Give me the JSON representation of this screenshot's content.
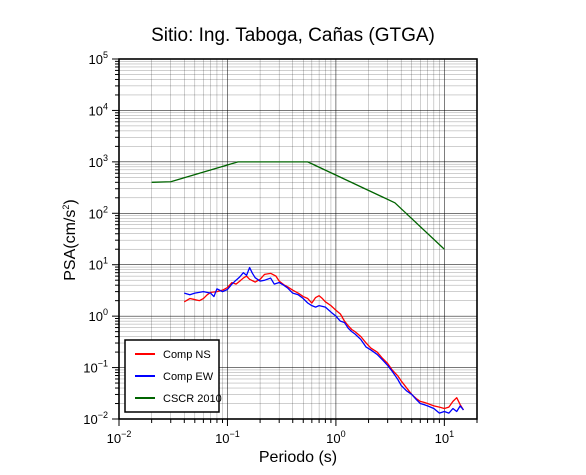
{
  "chart_data": {
    "type": "line",
    "title": "Sitio: Ing. Taboga, Cañas (GTGA)",
    "xlabel": "Periodo (s)",
    "ylabel_main": "PSA(cm/s",
    "ylabel_sup": "2",
    "ylabel_tail": ")",
    "xscale": "log",
    "yscale": "log",
    "xlim": [
      0.01,
      20
    ],
    "ylim": [
      0.01,
      100000
    ],
    "grid": true,
    "legend_position": "bottom-left",
    "x_ticks": [
      {
        "base": "10",
        "exp": "−2"
      },
      {
        "base": "10",
        "exp": "−1"
      },
      {
        "base": "10",
        "exp": "0"
      },
      {
        "base": "10",
        "exp": "1"
      }
    ],
    "y_ticks": [
      {
        "base": "10",
        "exp": "−2"
      },
      {
        "base": "10",
        "exp": "−1"
      },
      {
        "base": "10",
        "exp": "0"
      },
      {
        "base": "10",
        "exp": "1"
      },
      {
        "base": "10",
        "exp": "2"
      },
      {
        "base": "10",
        "exp": "3"
      },
      {
        "base": "10",
        "exp": "4"
      },
      {
        "base": "10",
        "exp": "5"
      }
    ],
    "series": [
      {
        "name": "Comp NS",
        "color": "#ff0000",
        "points": [
          [
            0.04,
            1.9
          ],
          [
            0.045,
            2.2
          ],
          [
            0.05,
            2.1
          ],
          [
            0.055,
            2.0
          ],
          [
            0.06,
            2.2
          ],
          [
            0.065,
            2.6
          ],
          [
            0.07,
            2.9
          ],
          [
            0.08,
            3.0
          ],
          [
            0.09,
            3.2
          ],
          [
            0.1,
            3.6
          ],
          [
            0.11,
            4.5
          ],
          [
            0.12,
            4.2
          ],
          [
            0.13,
            4.8
          ],
          [
            0.14,
            5.5
          ],
          [
            0.15,
            6.0
          ],
          [
            0.16,
            5.2
          ],
          [
            0.18,
            4.6
          ],
          [
            0.2,
            5.2
          ],
          [
            0.22,
            6.5
          ],
          [
            0.25,
            6.8
          ],
          [
            0.28,
            6.0
          ],
          [
            0.3,
            4.8
          ],
          [
            0.33,
            4.1
          ],
          [
            0.36,
            3.7
          ],
          [
            0.4,
            3.2
          ],
          [
            0.45,
            2.8
          ],
          [
            0.5,
            2.4
          ],
          [
            0.55,
            2.2
          ],
          [
            0.6,
            1.8
          ],
          [
            0.65,
            2.3
          ],
          [
            0.7,
            2.5
          ],
          [
            0.75,
            2.2
          ],
          [
            0.8,
            1.9
          ],
          [
            0.9,
            1.6
          ],
          [
            1.0,
            1.3
          ],
          [
            1.1,
            1.1
          ],
          [
            1.2,
            0.8
          ],
          [
            1.3,
            0.65
          ],
          [
            1.4,
            0.55
          ],
          [
            1.5,
            0.5
          ],
          [
            1.7,
            0.4
          ],
          [
            1.9,
            0.3
          ],
          [
            2.1,
            0.24
          ],
          [
            2.4,
            0.2
          ],
          [
            2.7,
            0.15
          ],
          [
            3.0,
            0.12
          ],
          [
            3.3,
            0.09
          ],
          [
            3.7,
            0.07
          ],
          [
            4.0,
            0.055
          ],
          [
            4.5,
            0.04
          ],
          [
            5.0,
            0.03
          ],
          [
            5.5,
            0.025
          ],
          [
            6.0,
            0.022
          ],
          [
            6.5,
            0.021
          ],
          [
            7.0,
            0.02
          ],
          [
            8.0,
            0.018
          ],
          [
            9.0,
            0.017
          ],
          [
            10.0,
            0.016
          ],
          [
            11.0,
            0.017
          ],
          [
            12.0,
            0.022
          ],
          [
            13.0,
            0.026
          ],
          [
            14.0,
            0.019
          ],
          [
            15.0,
            0.015
          ]
        ]
      },
      {
        "name": "Comp EW",
        "color": "#0000ff",
        "points": [
          [
            0.04,
            2.8
          ],
          [
            0.045,
            2.6
          ],
          [
            0.05,
            2.8
          ],
          [
            0.06,
            3.0
          ],
          [
            0.07,
            2.8
          ],
          [
            0.075,
            2.4
          ],
          [
            0.08,
            3.4
          ],
          [
            0.09,
            3.0
          ],
          [
            0.1,
            3.3
          ],
          [
            0.11,
            4.2
          ],
          [
            0.12,
            5.0
          ],
          [
            0.13,
            5.8
          ],
          [
            0.14,
            7.0
          ],
          [
            0.15,
            6.2
          ],
          [
            0.16,
            8.8
          ],
          [
            0.17,
            6.8
          ],
          [
            0.18,
            5.6
          ],
          [
            0.2,
            4.8
          ],
          [
            0.22,
            5.0
          ],
          [
            0.25,
            5.5
          ],
          [
            0.27,
            4.2
          ],
          [
            0.3,
            4.5
          ],
          [
            0.33,
            4.0
          ],
          [
            0.36,
            3.5
          ],
          [
            0.4,
            2.8
          ],
          [
            0.45,
            2.6
          ],
          [
            0.5,
            2.2
          ],
          [
            0.55,
            1.8
          ],
          [
            0.6,
            1.6
          ],
          [
            0.65,
            1.5
          ],
          [
            0.7,
            1.6
          ],
          [
            0.75,
            1.55
          ],
          [
            0.8,
            1.5
          ],
          [
            0.9,
            1.2
          ],
          [
            1.0,
            1.0
          ],
          [
            1.1,
            0.8
          ],
          [
            1.2,
            0.75
          ],
          [
            1.3,
            0.58
          ],
          [
            1.4,
            0.5
          ],
          [
            1.5,
            0.45
          ],
          [
            1.7,
            0.35
          ],
          [
            1.9,
            0.25
          ],
          [
            2.1,
            0.22
          ],
          [
            2.4,
            0.18
          ],
          [
            2.7,
            0.14
          ],
          [
            3.0,
            0.11
          ],
          [
            3.3,
            0.085
          ],
          [
            3.7,
            0.06
          ],
          [
            4.0,
            0.045
          ],
          [
            4.5,
            0.035
          ],
          [
            5.0,
            0.03
          ],
          [
            5.5,
            0.024
          ],
          [
            6.0,
            0.02
          ],
          [
            6.5,
            0.019
          ],
          [
            7.0,
            0.018
          ],
          [
            8.0,
            0.016
          ],
          [
            9.0,
            0.013
          ],
          [
            10.0,
            0.014
          ],
          [
            11.0,
            0.013
          ],
          [
            12.0,
            0.016
          ],
          [
            13.0,
            0.014
          ],
          [
            14.0,
            0.018
          ],
          [
            15.0,
            0.015
          ]
        ]
      },
      {
        "name": "CSCR 2010",
        "color": "#006400",
        "points": [
          [
            0.02,
            400
          ],
          [
            0.03,
            410
          ],
          [
            0.125,
            1000
          ],
          [
            0.55,
            1000
          ],
          [
            3.5,
            160
          ],
          [
            10.0,
            20
          ]
        ]
      }
    ]
  }
}
